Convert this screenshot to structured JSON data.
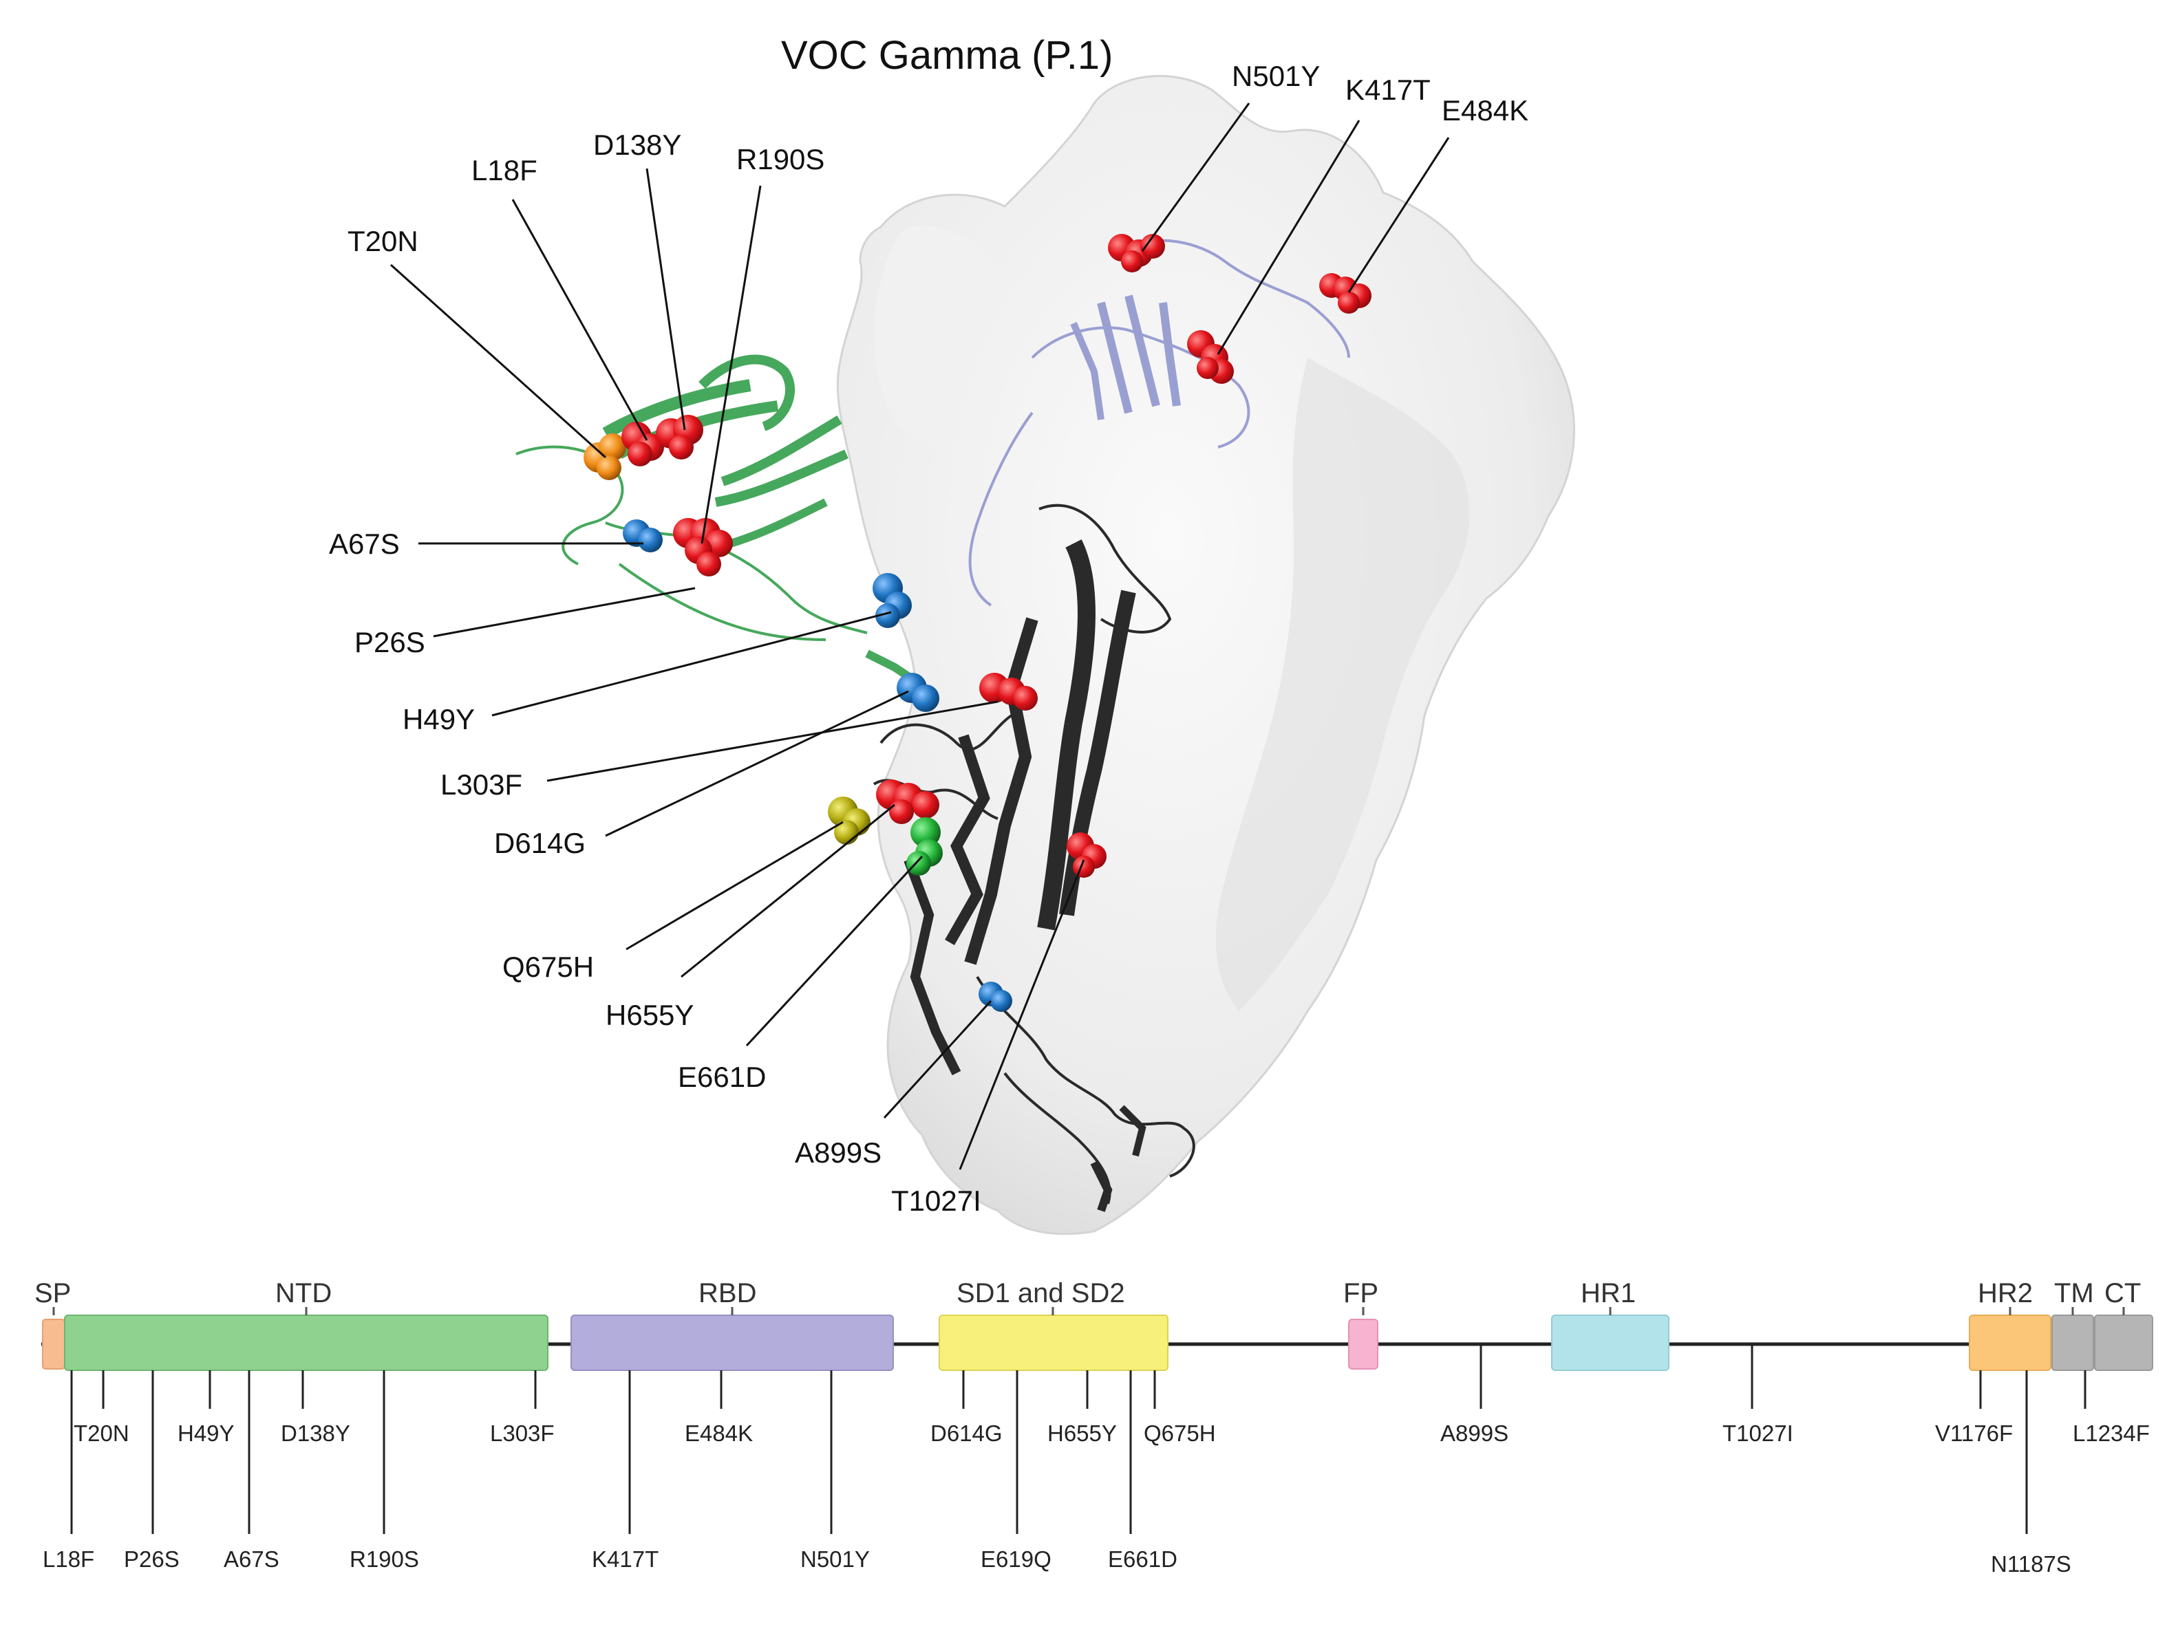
{
  "title": "VOC Gamma (P.1)",
  "structure_labels": [
    {
      "id": "n501y",
      "text": "N501Y"
    },
    {
      "id": "k417t",
      "text": "K417T"
    },
    {
      "id": "e484k",
      "text": "E484K"
    },
    {
      "id": "d138y",
      "text": "D138Y"
    },
    {
      "id": "l18f",
      "text": "L18F"
    },
    {
      "id": "r190s",
      "text": "R190S"
    },
    {
      "id": "t20n",
      "text": "T20N"
    },
    {
      "id": "a67s",
      "text": "A67S"
    },
    {
      "id": "p26s",
      "text": "P26S"
    },
    {
      "id": "h49y",
      "text": "H49Y"
    },
    {
      "id": "l303f",
      "text": "L303F"
    },
    {
      "id": "d614g",
      "text": "D614G"
    },
    {
      "id": "q675h",
      "text": "Q675H"
    },
    {
      "id": "h655y",
      "text": "H655Y"
    },
    {
      "id": "e661d",
      "text": "E661D"
    },
    {
      "id": "a899s",
      "text": "A899S"
    },
    {
      "id": "t1027i",
      "text": "T1027I"
    }
  ],
  "domains": [
    {
      "id": "sp",
      "label": "SP",
      "color": "#f7bc8f"
    },
    {
      "id": "ntd",
      "label": "NTD",
      "color": "#8fd18f"
    },
    {
      "id": "rbd",
      "label": "RBD",
      "color": "#b3addc"
    },
    {
      "id": "sd",
      "label": "SD1 and SD2",
      "color": "#f7f07a"
    },
    {
      "id": "fp",
      "label": "FP",
      "color": "#f7b3d0"
    },
    {
      "id": "hr1",
      "label": "HR1",
      "color": "#b3e3ea"
    },
    {
      "id": "hr2",
      "label": "HR2",
      "color": "#fcc679"
    },
    {
      "id": "tm",
      "label": "TM",
      "color": "#b5b5b5"
    },
    {
      "id": "ct",
      "label": "CT",
      "color": "#b5b5b5"
    }
  ],
  "sites_upper": [
    {
      "id": "t20n",
      "text": "T20N"
    },
    {
      "id": "h49y",
      "text": "H49Y"
    },
    {
      "id": "d138y",
      "text": "D138Y"
    },
    {
      "id": "l303f",
      "text": "L303F"
    },
    {
      "id": "e484k",
      "text": "E484K"
    },
    {
      "id": "d614g",
      "text": "D614G"
    },
    {
      "id": "h655y",
      "text": "H655Y"
    },
    {
      "id": "q675h",
      "text": "Q675H"
    },
    {
      "id": "a899s",
      "text": "A899S"
    },
    {
      "id": "t1027i",
      "text": "T1027I"
    },
    {
      "id": "v1176f",
      "text": "V1176F"
    },
    {
      "id": "l1234f",
      "text": "L1234F"
    }
  ],
  "sites_lower": [
    {
      "id": "l18f",
      "text": "L18F"
    },
    {
      "id": "p26s",
      "text": "P26S"
    },
    {
      "id": "a67s",
      "text": "A67S"
    },
    {
      "id": "r190s",
      "text": "R190S"
    },
    {
      "id": "k417t",
      "text": "K417T"
    },
    {
      "id": "n501y",
      "text": "N501Y"
    },
    {
      "id": "e619q",
      "text": "E619Q"
    },
    {
      "id": "e661d",
      "text": "E661D"
    },
    {
      "id": "n1187s",
      "text": "N1187S"
    }
  ],
  "colors": {
    "mutation_red": "#e3141b",
    "mutation_blue": "#1f74c2",
    "mutation_orange": "#f08a16",
    "mutation_yellow": "#b5ad12",
    "mutation_green": "#25b43a",
    "ntd_ribbon": "#46a85c",
    "rbd_ribbon": "#9a9fd2",
    "chain_ribbon": "#2a2a2a",
    "surface": "#ececec"
  }
}
